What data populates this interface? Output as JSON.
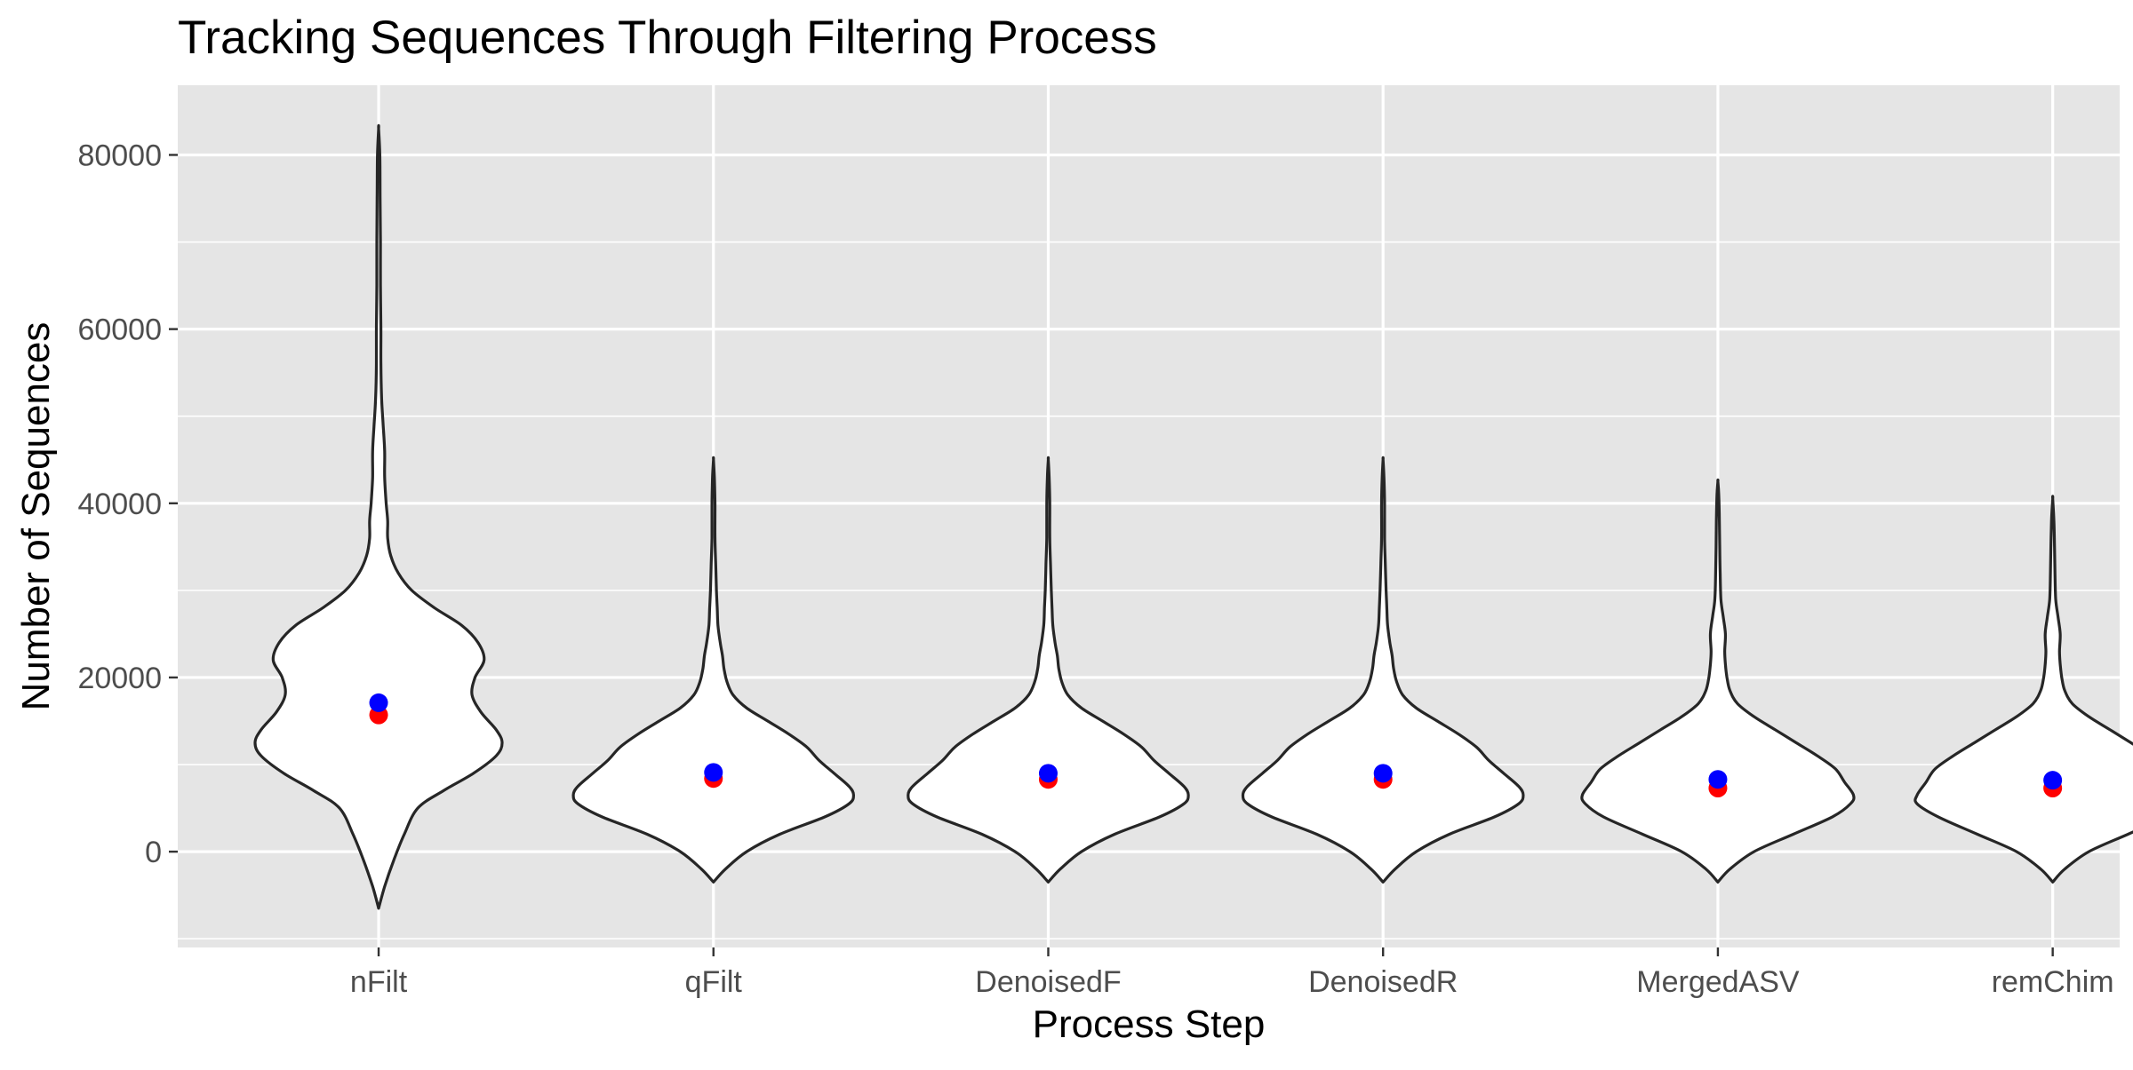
{
  "chart_data": {
    "type": "violin",
    "title": "Tracking Sequences Through Filtering Process",
    "xlabel": "Process Step",
    "ylabel": "Number of Sequences",
    "categories": [
      "nFilt",
      "qFilt",
      "DenoisedF",
      "DenoisedR",
      "MergedASV",
      "remChim"
    ],
    "y_ticks": [
      0,
      20000,
      40000,
      60000,
      80000
    ],
    "y_tick_labels": [
      "0",
      "20000",
      "40000",
      "60000",
      "80000"
    ],
    "ylim": [
      -11000,
      88000
    ],
    "grid": true,
    "legend": "none",
    "colors": {
      "panel_background": "#e5e5e5",
      "grid": "#ffffff",
      "violin_fill": "#ffffff",
      "violin_outline": "#262626",
      "mean_point": "#0000ff",
      "median_point": "#ff0000"
    },
    "series": [
      {
        "values_blue": [
          17100,
          9100,
          9000,
          9000,
          8300,
          8200
        ],
        "values_red": [
          15700,
          8400,
          8300,
          8300,
          7300,
          7300
        ]
      }
    ],
    "violins": [
      {
        "category": "nFilt",
        "ymin": -6500,
        "ymax": 83000,
        "density": [
          [
            -6500,
            0
          ],
          [
            -4000,
            0.04
          ],
          [
            -1000,
            0.1
          ],
          [
            2000,
            0.17
          ],
          [
            5000,
            0.26
          ],
          [
            7000,
            0.43
          ],
          [
            9000,
            0.63
          ],
          [
            11000,
            0.78
          ],
          [
            12500,
            0.82
          ],
          [
            14000,
            0.78
          ],
          [
            16000,
            0.68
          ],
          [
            18000,
            0.62
          ],
          [
            20000,
            0.64
          ],
          [
            22000,
            0.7
          ],
          [
            24000,
            0.66
          ],
          [
            26000,
            0.55
          ],
          [
            28000,
            0.37
          ],
          [
            30000,
            0.22
          ],
          [
            32000,
            0.13
          ],
          [
            34000,
            0.08
          ],
          [
            36000,
            0.06
          ],
          [
            38000,
            0.06
          ],
          [
            40000,
            0.05
          ],
          [
            43000,
            0.04
          ],
          [
            46000,
            0.04
          ],
          [
            49000,
            0.03
          ],
          [
            52000,
            0.02
          ],
          [
            56000,
            0.015
          ],
          [
            60000,
            0.015
          ],
          [
            65000,
            0.012
          ],
          [
            70000,
            0.012
          ],
          [
            75000,
            0.01
          ],
          [
            80000,
            0.008
          ],
          [
            83000,
            0
          ]
        ]
      },
      {
        "category": "qFilt",
        "ymin": -3500,
        "ymax": 45000,
        "density": [
          [
            -3500,
            0
          ],
          [
            -2000,
            0.08
          ],
          [
            0,
            0.22
          ],
          [
            2000,
            0.44
          ],
          [
            4000,
            0.74
          ],
          [
            5500,
            0.9
          ],
          [
            6500,
            0.93
          ],
          [
            7500,
            0.9
          ],
          [
            9000,
            0.8
          ],
          [
            10500,
            0.7
          ],
          [
            12000,
            0.62
          ],
          [
            13500,
            0.5
          ],
          [
            15000,
            0.36
          ],
          [
            16500,
            0.22
          ],
          [
            18000,
            0.13
          ],
          [
            19500,
            0.09
          ],
          [
            21000,
            0.07
          ],
          [
            22500,
            0.06
          ],
          [
            24000,
            0.045
          ],
          [
            26000,
            0.03
          ],
          [
            28000,
            0.025
          ],
          [
            30000,
            0.02
          ],
          [
            33000,
            0.015
          ],
          [
            36000,
            0.01
          ],
          [
            40000,
            0.01
          ],
          [
            43000,
            0.006
          ],
          [
            45000,
            0
          ]
        ]
      },
      {
        "category": "DenoisedF",
        "ymin": -3500,
        "ymax": 45000,
        "density": [
          [
            -3500,
            0
          ],
          [
            -2000,
            0.08
          ],
          [
            0,
            0.22
          ],
          [
            2000,
            0.44
          ],
          [
            4000,
            0.74
          ],
          [
            5500,
            0.9
          ],
          [
            6500,
            0.93
          ],
          [
            7500,
            0.9
          ],
          [
            9000,
            0.8
          ],
          [
            10500,
            0.7
          ],
          [
            12000,
            0.62
          ],
          [
            13500,
            0.5
          ],
          [
            15000,
            0.36
          ],
          [
            16500,
            0.22
          ],
          [
            18000,
            0.13
          ],
          [
            19500,
            0.09
          ],
          [
            21000,
            0.07
          ],
          [
            22500,
            0.06
          ],
          [
            24000,
            0.045
          ],
          [
            26000,
            0.03
          ],
          [
            28000,
            0.025
          ],
          [
            30000,
            0.02
          ],
          [
            33000,
            0.015
          ],
          [
            36000,
            0.01
          ],
          [
            40000,
            0.01
          ],
          [
            43000,
            0.006
          ],
          [
            45000,
            0
          ]
        ]
      },
      {
        "category": "DenoisedR",
        "ymin": -3500,
        "ymax": 45000,
        "density": [
          [
            -3500,
            0
          ],
          [
            -2000,
            0.08
          ],
          [
            0,
            0.22
          ],
          [
            2000,
            0.44
          ],
          [
            4000,
            0.74
          ],
          [
            5500,
            0.9
          ],
          [
            6500,
            0.93
          ],
          [
            7500,
            0.9
          ],
          [
            9000,
            0.8
          ],
          [
            10500,
            0.7
          ],
          [
            12000,
            0.62
          ],
          [
            13500,
            0.5
          ],
          [
            15000,
            0.36
          ],
          [
            16500,
            0.22
          ],
          [
            18000,
            0.13
          ],
          [
            19500,
            0.09
          ],
          [
            21000,
            0.07
          ],
          [
            22500,
            0.06
          ],
          [
            24000,
            0.045
          ],
          [
            26000,
            0.03
          ],
          [
            28000,
            0.025
          ],
          [
            30000,
            0.02
          ],
          [
            33000,
            0.015
          ],
          [
            36000,
            0.01
          ],
          [
            40000,
            0.01
          ],
          [
            43000,
            0.006
          ],
          [
            45000,
            0
          ]
        ]
      },
      {
        "category": "MergedASV",
        "ymin": -3500,
        "ymax": 42500,
        "density": [
          [
            -3500,
            0
          ],
          [
            -2000,
            0.08
          ],
          [
            0,
            0.24
          ],
          [
            2000,
            0.5
          ],
          [
            4000,
            0.76
          ],
          [
            5500,
            0.88
          ],
          [
            6500,
            0.9
          ],
          [
            8000,
            0.84
          ],
          [
            9500,
            0.78
          ],
          [
            11000,
            0.66
          ],
          [
            12500,
            0.52
          ],
          [
            14000,
            0.38
          ],
          [
            15500,
            0.24
          ],
          [
            17000,
            0.13
          ],
          [
            18500,
            0.08
          ],
          [
            20000,
            0.06
          ],
          [
            21500,
            0.05
          ],
          [
            23000,
            0.045
          ],
          [
            25000,
            0.05
          ],
          [
            27000,
            0.035
          ],
          [
            29000,
            0.02
          ],
          [
            32000,
            0.015
          ],
          [
            35000,
            0.012
          ],
          [
            38000,
            0.01
          ],
          [
            41000,
            0.006
          ],
          [
            42500,
            0
          ]
        ]
      },
      {
        "category": "remChim",
        "ymin": -3500,
        "ymax": 40500,
        "density": [
          [
            -3500,
            0
          ],
          [
            -2000,
            0.08
          ],
          [
            0,
            0.24
          ],
          [
            2000,
            0.5
          ],
          [
            4000,
            0.76
          ],
          [
            5500,
            0.9
          ],
          [
            6500,
            0.9
          ],
          [
            8000,
            0.84
          ],
          [
            9500,
            0.78
          ],
          [
            11000,
            0.66
          ],
          [
            12500,
            0.52
          ],
          [
            14000,
            0.38
          ],
          [
            15500,
            0.24
          ],
          [
            17000,
            0.13
          ],
          [
            18500,
            0.08
          ],
          [
            20000,
            0.06
          ],
          [
            21500,
            0.05
          ],
          [
            23000,
            0.045
          ],
          [
            25000,
            0.05
          ],
          [
            27000,
            0.035
          ],
          [
            29000,
            0.02
          ],
          [
            32000,
            0.015
          ],
          [
            35000,
            0.012
          ],
          [
            38000,
            0.008
          ],
          [
            40500,
            0
          ]
        ]
      }
    ]
  }
}
